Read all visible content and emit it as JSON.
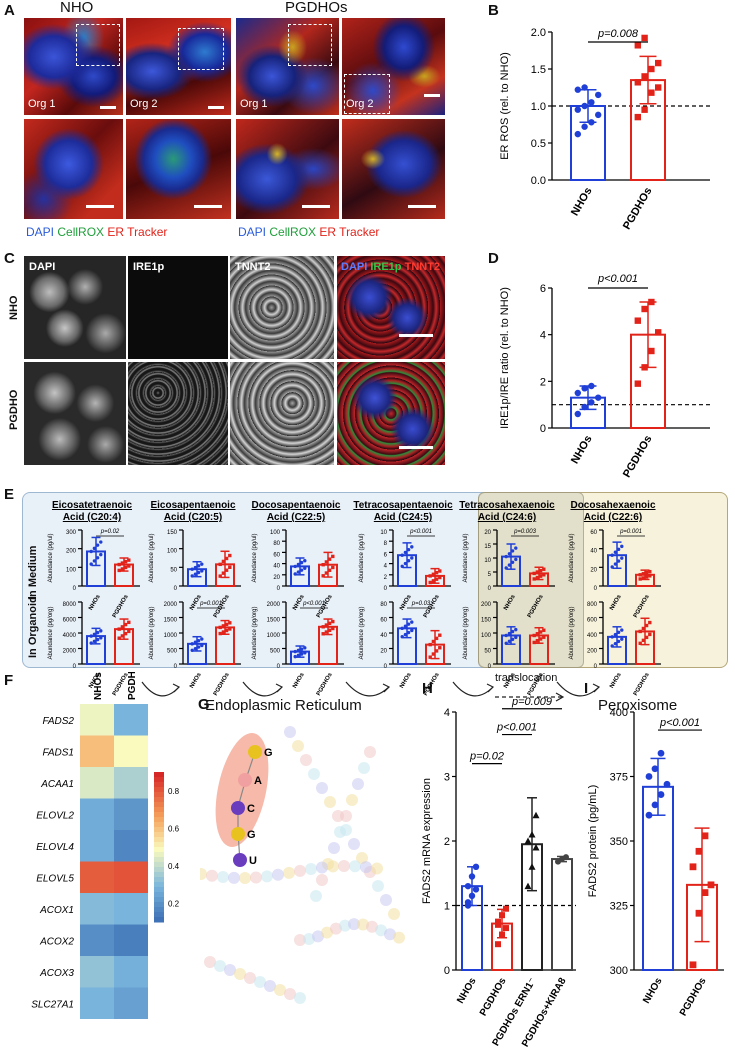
{
  "panel_letters": {
    "a": "A",
    "b": "B",
    "c": "C",
    "d": "D",
    "e": "E",
    "f": "F",
    "g": "G",
    "h": "H",
    "i": "I"
  },
  "panelA": {
    "col_nho": "NHO",
    "col_pgdho": "PGDHOs",
    "org1": "Org 1",
    "org2": "Org 2",
    "legend_dapi": "DAPI",
    "legend_cellrox": "CellROX",
    "legend_er": "ER Tracker",
    "colors": {
      "dapi": "#2a5bd7",
      "cellrox": "#1f9e3a",
      "er": "#e2231a"
    }
  },
  "panelC": {
    "row_nho": "NHO",
    "row_pgdho": "PGDHO",
    "ch_dapi": "DAPI",
    "ch_ire1p": "IRE1p",
    "ch_tnnt2": "TNNT2",
    "merge_dapi": "DAPI",
    "merge_ire1p": "IRE1p",
    "merge_tnnt2": "TNNT2"
  },
  "chart_data": [
    {
      "id": "B",
      "type": "bar",
      "categories": [
        "NHOs",
        "PGDHOs"
      ],
      "values": [
        1.0,
        1.35
      ],
      "errors": [
        0.22,
        0.32
      ],
      "points": [
        [
          0.62,
          0.72,
          0.78,
          0.88,
          0.95,
          1.0,
          1.05,
          1.15,
          1.22,
          1.25
        ],
        [
          0.85,
          0.95,
          1.18,
          1.25,
          1.32,
          1.4,
          1.5,
          1.58,
          1.82,
          1.92
        ]
      ],
      "ylabel": "ER ROS (rel. to NHO)",
      "ylim": [
        0.0,
        2.0
      ],
      "yticks": [
        "0.0",
        "0.5",
        "1.0",
        "1.5",
        "2.0"
      ],
      "reference_line": 1.0,
      "pvalue": "p=0.008",
      "colors": [
        "#1f3fd6",
        "#e2231a"
      ]
    },
    {
      "id": "D",
      "type": "bar",
      "categories": [
        "NHOs",
        "PGDHOs"
      ],
      "values": [
        1.3,
        4.0
      ],
      "errors": [
        0.5,
        1.4
      ],
      "points": [
        [
          0.6,
          0.9,
          1.1,
          1.3,
          1.5,
          1.7,
          1.8
        ],
        [
          1.9,
          2.6,
          3.3,
          4.1,
          4.6,
          5.1,
          5.4
        ]
      ],
      "ylabel": "IRE1p/IRE ratio (rel. to NHO)",
      "ylim": [
        0,
        6
      ],
      "yticks": [
        "0",
        "2",
        "4",
        "6"
      ],
      "reference_line": 1,
      "pvalue": "p<0.001",
      "colors": [
        "#1f3fd6",
        "#e2231a"
      ]
    },
    {
      "id": "E",
      "type": "bar",
      "row_labels": [
        "In Medium",
        "In Organoid"
      ],
      "region_labels": [
        "Endoplasmic Reticulum",
        "Peroxisome"
      ],
      "translocation": "translocation",
      "categories": [
        "NHOs",
        "PGDHOs"
      ],
      "acids": [
        {
          "name": "Eicosatetraenoic",
          "sub": "Acid (C20:4)",
          "medium": {
            "ylabel": "Abundance (pg/ul)",
            "ymax": 300,
            "yticks": [
              "0",
              "100",
              "200",
              "300"
            ],
            "values": [
              185,
              115
            ],
            "errors": [
              75,
              35
            ],
            "pvalue": "p=0.02"
          },
          "organoid": {
            "ylabel": "Abundance (pg/org)",
            "ymax": 8000,
            "yticks": [
              "0",
              "2000",
              "4000",
              "6000",
              "8000"
            ],
            "values": [
              3600,
              4500
            ],
            "errors": [
              1000,
              1300
            ],
            "pvalue": ""
          }
        },
        {
          "name": "Eicosapentaenoic",
          "sub": "Acid (C20:5)",
          "medium": {
            "ylabel": "Abundance (pg/ul)",
            "ymax": 150,
            "yticks": [
              "0",
              "50",
              "100",
              "150"
            ],
            "values": [
              45,
              58
            ],
            "errors": [
              20,
              35
            ],
            "pvalue": ""
          },
          "organoid": {
            "ylabel": "Abundance (pg/org)",
            "ymax": 2000,
            "yticks": [
              "0",
              "500",
              "1000",
              "1500",
              "2000"
            ],
            "values": [
              650,
              1180
            ],
            "errors": [
              230,
              220
            ],
            "pvalue": "p=0.001"
          }
        },
        {
          "name": "Docosapentaenoic",
          "sub": "Acid (C22:5)",
          "medium": {
            "ylabel": "Abundance (pg/ul)",
            "ymax": 100,
            "yticks": [
              "0",
              "20",
              "40",
              "60",
              "80",
              "100"
            ],
            "values": [
              35,
              38
            ],
            "errors": [
              15,
              22
            ],
            "pvalue": ""
          },
          "organoid": {
            "ylabel": "Abundance (pg/org)",
            "ymax": 2000,
            "yticks": [
              "0",
              "500",
              "1000",
              "1500",
              "2000"
            ],
            "values": [
              400,
              1200
            ],
            "errors": [
              180,
              250
            ],
            "pvalue": "p<0.001"
          }
        },
        {
          "name": "Tetracosapentaenoic",
          "sub": "Acid (C24:5)",
          "medium": {
            "ylabel": "Abundance (pg/ul)",
            "ymax": 10,
            "yticks": [
              "0",
              "2",
              "4",
              "6",
              "8",
              "10"
            ],
            "values": [
              5.5,
              1.8
            ],
            "errors": [
              2.2,
              1.3
            ],
            "pvalue": "p<0.001"
          },
          "organoid": {
            "ylabel": "Abundance (pg/org)",
            "ymax": 80,
            "yticks": [
              "0",
              "20",
              "40",
              "60",
              "80"
            ],
            "values": [
              46,
              25
            ],
            "errors": [
              12,
              18
            ],
            "pvalue": "p=0.03"
          }
        },
        {
          "name": "Tetracosahexaenoic",
          "sub": "Acid (C24:6)",
          "medium": {
            "ylabel": "Abundance (pg/ul)",
            "ymax": 20,
            "yticks": [
              "0",
              "5",
              "10",
              "15",
              "20"
            ],
            "values": [
              10.5,
              4.5
            ],
            "errors": [
              4.5,
              2.2
            ],
            "pvalue": "p=0.003"
          },
          "organoid": {
            "ylabel": "Abundance (pg/org)",
            "ymax": 200,
            "yticks": [
              "0",
              "50",
              "100",
              "150",
              "200"
            ],
            "values": [
              92,
              92
            ],
            "errors": [
              28,
              25
            ],
            "pvalue": ""
          }
        },
        {
          "name": "Docosahexaenoic",
          "sub": "Acid (C22:6)",
          "medium": {
            "ylabel": "Abundance (pg/ul)",
            "ymax": 60,
            "yticks": [
              "0",
              "20",
              "40",
              "60"
            ],
            "values": [
              33,
              12
            ],
            "errors": [
              14,
              5
            ],
            "pvalue": "p=0.001"
          },
          "organoid": {
            "ylabel": "Abundance (pg/org)",
            "ymax": 800,
            "yticks": [
              "0",
              "200",
              "400",
              "600",
              "800"
            ],
            "values": [
              350,
              420
            ],
            "errors": [
              130,
              170
            ],
            "pvalue": ""
          }
        }
      ],
      "colors": [
        "#1f3fd6",
        "#e2231a"
      ]
    },
    {
      "id": "F",
      "type": "heatmap",
      "columns": [
        "NHOs",
        "PGDHOs"
      ],
      "rows": [
        "FADS2",
        "FADS1",
        "ACAA1",
        "ELOVL2",
        "ELOVL4",
        "ELOVL5",
        "ACOX1",
        "ACOX2",
        "ACOX3",
        "SLC27A1"
      ],
      "values": [
        [
          0.48,
          0.3
        ],
        [
          0.62,
          0.5
        ],
        [
          0.45,
          0.38
        ],
        [
          0.28,
          0.22
        ],
        [
          0.28,
          0.18
        ],
        [
          0.8,
          0.82
        ],
        [
          0.32,
          0.3
        ],
        [
          0.2,
          0.16
        ],
        [
          0.34,
          0.29
        ],
        [
          0.3,
          0.25
        ]
      ],
      "colorbar_ticks": [
        "0.8",
        "0.6",
        "0.4",
        "0.2"
      ],
      "range": [
        0.1,
        0.9
      ]
    },
    {
      "id": "H",
      "type": "bar",
      "categories": [
        "NHOs",
        "PGDHOs",
        "PGDHOs ERN1⁻",
        "PGDHOs+KIRA8"
      ],
      "values": [
        1.3,
        0.72,
        1.95,
        1.72
      ],
      "errors": [
        0.3,
        0.22,
        0.72,
        0.04
      ],
      "ylabel": "FADS2 mRNA expression",
      "ylim": [
        0,
        4
      ],
      "yticks": [
        "0",
        "1",
        "2",
        "3",
        "4"
      ],
      "reference_line": 1,
      "pvalues": [
        "p=0.02",
        "p<0.001",
        "p=0.009"
      ],
      "colors": [
        "#1f3fd6",
        "#e2231a",
        "#222222",
        "#444444"
      ]
    },
    {
      "id": "I",
      "type": "bar",
      "categories": [
        "NHOs",
        "PGDHOs"
      ],
      "values": [
        371,
        333
      ],
      "errors": [
        11,
        22
      ],
      "points": [
        [
          360,
          364,
          368,
          372,
          375,
          378,
          384
        ],
        [
          302,
          322,
          330,
          333,
          340,
          346,
          352
        ]
      ],
      "ylabel": "FADS2 protein (pg/mL)",
      "ylim": [
        300,
        400
      ],
      "yticks": [
        "300",
        "325",
        "350",
        "375",
        "400"
      ],
      "pvalue": "p<0.001",
      "colors": [
        "#1f3fd6",
        "#e2231a"
      ]
    }
  ],
  "panelG": {
    "hairpin_letters": [
      "G",
      "A",
      "C",
      "G",
      "U"
    ],
    "highlight_color": "#f4a28c"
  }
}
